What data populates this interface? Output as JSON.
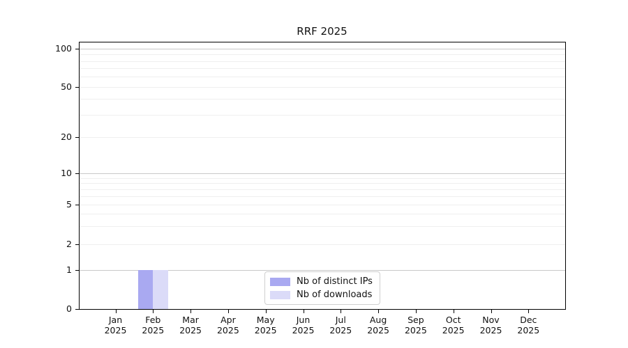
{
  "title": "RRF 2025",
  "colors": {
    "distinct_ips": "#a9a9f1",
    "downloads": "#dbdbf8",
    "grid_major": "#c9c9c9",
    "grid_minor": "#efefef",
    "axis": "#000000"
  },
  "chart_data": {
    "type": "bar",
    "title": "RRF 2025",
    "categories": [
      "Jan",
      "Feb",
      "Mar",
      "Apr",
      "May",
      "Jun",
      "Jul",
      "Aug",
      "Sep",
      "Oct",
      "Nov",
      "Dec"
    ],
    "year_label": "2025",
    "series": [
      {
        "name": "Nb of distinct IPs",
        "color": "#a9a9f1",
        "values": [
          0,
          1,
          0,
          0,
          0,
          0,
          0,
          0,
          0,
          0,
          0,
          0
        ]
      },
      {
        "name": "Nb of downloads",
        "color": "#dbdbf8",
        "values": [
          0,
          1,
          0,
          0,
          0,
          0,
          0,
          0,
          0,
          0,
          0,
          0
        ]
      }
    ],
    "xlabel": "",
    "ylabel": "",
    "yscale": "symlog",
    "yticks": [
      0,
      1,
      2,
      5,
      10,
      20,
      50,
      100
    ],
    "ytick_labels": [
      "0",
      "1",
      "2",
      "5",
      "10",
      "20",
      "50",
      "100"
    ],
    "y_minor_ticks": [
      3,
      4,
      6,
      7,
      8,
      9,
      30,
      40,
      60,
      70,
      80,
      90
    ],
    "ylim": [
      0,
      115
    ],
    "grid": "both",
    "legend_position": "lower center"
  }
}
